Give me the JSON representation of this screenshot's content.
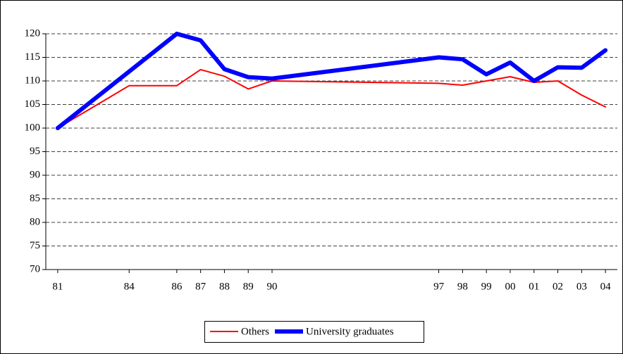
{
  "chart_data": {
    "type": "line",
    "xlim": [
      80.5,
      104.5
    ],
    "xticks": [
      81,
      84,
      86,
      87,
      88,
      89,
      90,
      97,
      98,
      99,
      {
        "value": 100,
        "label": "00"
      },
      {
        "value": 101,
        "label": "01"
      },
      {
        "value": 102,
        "label": "02"
      },
      {
        "value": 103,
        "label": "03"
      },
      {
        "value": 104,
        "label": "04"
      }
    ],
    "ylim": [
      70,
      120
    ],
    "yticks": [
      70,
      75,
      80,
      85,
      90,
      95,
      100,
      105,
      110,
      115,
      120
    ],
    "grid": true,
    "legend": "bottom",
    "series": [
      {
        "name": "Others",
        "color": "#ff0000",
        "x": [
          81,
          84,
          86,
          87,
          88,
          89,
          90,
          97,
          98,
          99,
          100,
          101,
          102,
          103,
          104
        ],
        "values": [
          100,
          109,
          109,
          112.4,
          111,
          108.3,
          110,
          109.5,
          109.1,
          110,
          110.9,
          109.7,
          110,
          107,
          104.5
        ]
      },
      {
        "name": "University graduates",
        "color": "#0000ff",
        "x": [
          81,
          86,
          87,
          88,
          89,
          90,
          97,
          98,
          99,
          100,
          101,
          102,
          103,
          104
        ],
        "values": [
          100,
          120,
          118.6,
          112.5,
          110.8,
          110.5,
          115,
          114.6,
          111.4,
          113.9,
          110,
          112.9,
          112.8,
          116.5
        ]
      }
    ]
  }
}
